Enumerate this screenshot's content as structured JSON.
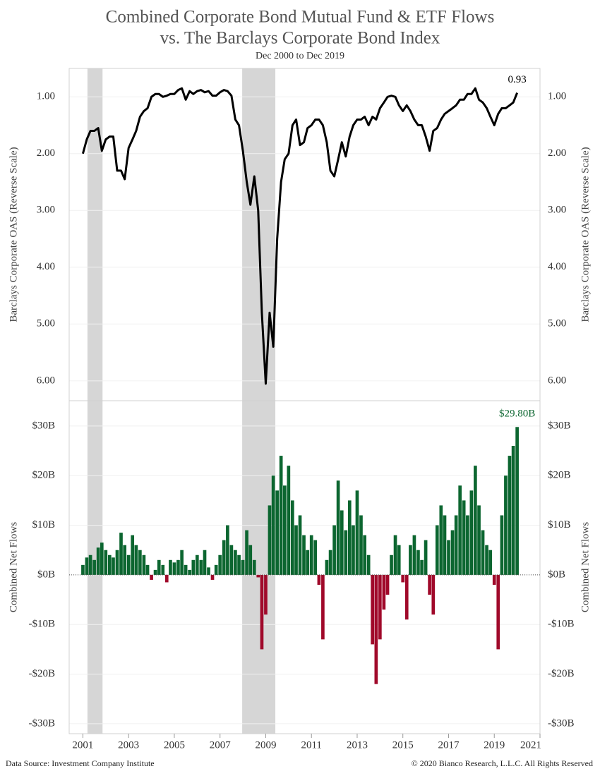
{
  "header": {
    "title": [
      "Combined Corporate Bond Mutual Fund & ETF Flows",
      "vs. The Barclays Corporate Bond Index"
    ],
    "subtitle": "Dec 2000 to Dec 2019"
  },
  "footer": {
    "source": "Data Source: Investment Company Institute",
    "copyright": "© 2020 Bianco Research, L.L.C. All Rights Reserved"
  },
  "shaded_periods": [
    [
      2001.2,
      2001.86
    ],
    [
      2007.97,
      2009.42
    ]
  ],
  "chart_data": [
    {
      "type": "line",
      "ylabel": "Barclays Corporate OAS (Reverse Scale)",
      "y_reverse": true,
      "color": "#000000",
      "xlim": [
        2000.4,
        2021
      ],
      "ylim": [
        0.5,
        6.35
      ],
      "yticks": [
        {
          "value": 1,
          "label": "1.00"
        },
        {
          "value": 2,
          "label": "2.00"
        },
        {
          "value": 3,
          "label": "3.00"
        },
        {
          "value": 4,
          "label": "4.00"
        },
        {
          "value": 5,
          "label": "5.00"
        },
        {
          "value": 6,
          "label": "6.00"
        }
      ],
      "grid": true,
      "annotation": {
        "text": "0.93",
        "index": 114
      },
      "x": [
        2001.0,
        2001.17,
        2001.33,
        2001.5,
        2001.67,
        2001.83,
        2002.0,
        2002.17,
        2002.33,
        2002.5,
        2002.67,
        2002.83,
        2003.0,
        2003.17,
        2003.33,
        2003.5,
        2003.67,
        2003.83,
        2004.0,
        2004.17,
        2004.33,
        2004.5,
        2004.67,
        2004.83,
        2005.0,
        2005.17,
        2005.33,
        2005.5,
        2005.67,
        2005.83,
        2006.0,
        2006.17,
        2006.33,
        2006.5,
        2006.67,
        2006.83,
        2007.0,
        2007.17,
        2007.33,
        2007.5,
        2007.67,
        2007.83,
        2008.0,
        2008.17,
        2008.33,
        2008.5,
        2008.67,
        2008.83,
        2009.0,
        2009.17,
        2009.33,
        2009.5,
        2009.67,
        2009.83,
        2010.0,
        2010.17,
        2010.33,
        2010.5,
        2010.67,
        2010.83,
        2011.0,
        2011.17,
        2011.33,
        2011.5,
        2011.67,
        2011.83,
        2012.0,
        2012.17,
        2012.33,
        2012.5,
        2012.67,
        2012.83,
        2013.0,
        2013.17,
        2013.33,
        2013.5,
        2013.67,
        2013.83,
        2014.0,
        2014.17,
        2014.33,
        2014.5,
        2014.67,
        2014.83,
        2015.0,
        2015.17,
        2015.33,
        2015.5,
        2015.67,
        2015.83,
        2016.0,
        2016.17,
        2016.33,
        2016.5,
        2016.67,
        2016.83,
        2017.0,
        2017.17,
        2017.33,
        2017.5,
        2017.67,
        2017.83,
        2018.0,
        2018.17,
        2018.33,
        2018.5,
        2018.67,
        2018.83,
        2019.0,
        2019.17,
        2019.33,
        2019.5,
        2019.67,
        2019.83,
        2020.0
      ],
      "values": [
        2.0,
        1.75,
        1.6,
        1.6,
        1.55,
        1.95,
        1.75,
        1.7,
        1.7,
        2.3,
        2.3,
        2.45,
        1.9,
        1.75,
        1.6,
        1.35,
        1.25,
        1.2,
        1.0,
        0.95,
        0.95,
        1.0,
        0.98,
        0.95,
        0.95,
        0.88,
        0.85,
        1.05,
        0.9,
        0.95,
        0.9,
        0.88,
        0.92,
        0.9,
        0.98,
        0.98,
        0.92,
        0.88,
        0.9,
        0.98,
        1.4,
        1.5,
        1.95,
        2.5,
        2.9,
        2.4,
        3.0,
        4.8,
        6.05,
        4.8,
        5.4,
        3.5,
        2.5,
        2.1,
        2.0,
        1.5,
        1.4,
        1.85,
        1.8,
        1.55,
        1.5,
        1.4,
        1.4,
        1.5,
        1.8,
        2.3,
        2.4,
        2.1,
        1.8,
        2.05,
        1.7,
        1.5,
        1.4,
        1.4,
        1.35,
        1.5,
        1.35,
        1.4,
        1.2,
        1.1,
        1.0,
        0.98,
        1.0,
        1.15,
        1.25,
        1.15,
        1.25,
        1.4,
        1.5,
        1.5,
        1.7,
        1.95,
        1.6,
        1.55,
        1.4,
        1.3,
        1.25,
        1.2,
        1.15,
        1.05,
        1.05,
        0.95,
        0.95,
        0.85,
        1.05,
        1.1,
        1.2,
        1.35,
        1.5,
        1.3,
        1.2,
        1.2,
        1.15,
        1.1,
        0.93
      ]
    },
    {
      "type": "bar",
      "ylabel": "Combined Net Flows",
      "positive_color": "#0c6630",
      "negative_color": "#a0092a",
      "xlim": [
        2000.4,
        2021
      ],
      "ylim": [
        -32,
        35.1
      ],
      "xticks": [
        2001,
        2003,
        2005,
        2007,
        2009,
        2011,
        2013,
        2015,
        2017,
        2019,
        2021
      ],
      "yticks": [
        {
          "value": -30,
          "label": "-$30B"
        },
        {
          "value": -20,
          "label": "-$20B"
        },
        {
          "value": -10,
          "label": "-$10B"
        },
        {
          "value": 0,
          "label": "$0B"
        },
        {
          "value": 10,
          "label": "$10B"
        },
        {
          "value": 20,
          "label": "$20B"
        },
        {
          "value": 30,
          "label": "$30B"
        }
      ],
      "grid": true,
      "annotation": {
        "text": "$29.80B",
        "index": 114
      },
      "x": [
        2001.0,
        2001.17,
        2001.33,
        2001.5,
        2001.67,
        2001.83,
        2002.0,
        2002.17,
        2002.33,
        2002.5,
        2002.67,
        2002.83,
        2003.0,
        2003.17,
        2003.33,
        2003.5,
        2003.67,
        2003.83,
        2004.0,
        2004.17,
        2004.33,
        2004.5,
        2004.67,
        2004.83,
        2005.0,
        2005.17,
        2005.33,
        2005.5,
        2005.67,
        2005.83,
        2006.0,
        2006.17,
        2006.33,
        2006.5,
        2006.67,
        2006.83,
        2007.0,
        2007.17,
        2007.33,
        2007.5,
        2007.67,
        2007.83,
        2008.0,
        2008.17,
        2008.33,
        2008.5,
        2008.67,
        2008.83,
        2009.0,
        2009.17,
        2009.33,
        2009.5,
        2009.67,
        2009.83,
        2010.0,
        2010.17,
        2010.33,
        2010.5,
        2010.67,
        2010.83,
        2011.0,
        2011.17,
        2011.33,
        2011.5,
        2011.67,
        2011.83,
        2012.0,
        2012.17,
        2012.33,
        2012.5,
        2012.67,
        2012.83,
        2013.0,
        2013.17,
        2013.33,
        2013.5,
        2013.67,
        2013.83,
        2014.0,
        2014.17,
        2014.33,
        2014.5,
        2014.67,
        2014.83,
        2015.0,
        2015.17,
        2015.33,
        2015.5,
        2015.67,
        2015.83,
        2016.0,
        2016.17,
        2016.33,
        2016.5,
        2016.67,
        2016.83,
        2017.0,
        2017.17,
        2017.33,
        2017.5,
        2017.67,
        2017.83,
        2018.0,
        2018.17,
        2018.33,
        2018.5,
        2018.67,
        2018.83,
        2019.0,
        2019.17,
        2019.33,
        2019.5,
        2019.67,
        2019.83,
        2020.0
      ],
      "values": [
        2,
        3.5,
        4,
        3,
        5.5,
        6.5,
        5,
        4,
        3.5,
        5,
        8.5,
        6,
        4,
        8,
        6,
        5,
        4,
        2,
        -1,
        1,
        3,
        2,
        -1.5,
        3,
        2.5,
        3,
        5,
        2,
        1,
        3,
        4,
        3,
        5,
        1.5,
        -1,
        2,
        4,
        7,
        10,
        6,
        5,
        4,
        3,
        9,
        6,
        3,
        -0.5,
        -15,
        -8,
        14,
        20,
        17,
        24,
        18,
        22,
        15,
        10,
        12,
        8,
        5,
        8,
        7,
        -2,
        -13,
        3,
        5,
        10,
        19,
        13,
        9,
        15,
        10,
        17,
        12,
        8,
        4,
        -14,
        -22,
        -13,
        -7,
        -4,
        4,
        8,
        6,
        -1.5,
        -9,
        6,
        8,
        5,
        3,
        7,
        -4,
        -8,
        10,
        14,
        12,
        7,
        9,
        12,
        18,
        15,
        12,
        17,
        22,
        14,
        9,
        6,
        5,
        -2,
        -15,
        12,
        20,
        24,
        26,
        29.8
      ]
    }
  ]
}
